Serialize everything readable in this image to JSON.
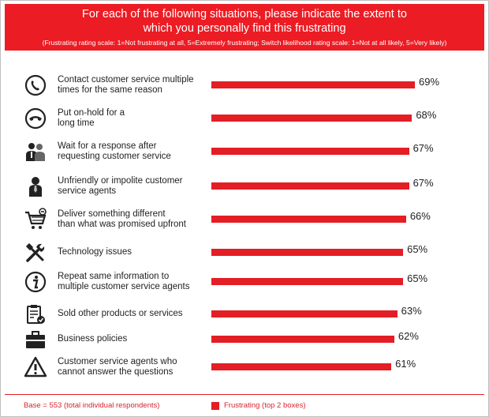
{
  "header": {
    "title_line1": "For each of the following situations, please indicate the extent to",
    "title_line2": "which you personally find this frustrating",
    "subtitle": "(Frustrating rating scale: 1=Not frustrating at all, 5=Extremely frustrating; Switch likelihood rating scale: 1=Not at all likely, 5=Very likely)"
  },
  "chart_data": {
    "type": "bar",
    "orientation": "horizontal",
    "title": "For each of the following situations, please indicate the extent to which you personally find this frustrating",
    "value_unit": "%",
    "xlim": [
      0,
      100
    ],
    "series": [
      {
        "name": "Frustrating (top 2 boxes)",
        "color": "#e31e24",
        "values": [
          69,
          68,
          67,
          67,
          66,
          65,
          65,
          63,
          62,
          61
        ]
      }
    ],
    "categories": [
      {
        "line1": "Contact customer service multiple",
        "line2": "times for the same reason",
        "icon": "phone-icon",
        "value": 69,
        "label": "69%"
      },
      {
        "line1": "Put on-hold for a",
        "line2": "long time",
        "icon": "handset-icon",
        "value": 68,
        "label": "68%"
      },
      {
        "line1": "Wait for a response after",
        "line2": "requesting customer service",
        "icon": "people-icon",
        "value": 67,
        "label": "67%"
      },
      {
        "line1": "Unfriendly or impolite customer",
        "line2": "service agents",
        "icon": "person-icon",
        "value": 67,
        "label": "67%"
      },
      {
        "line1": "Deliver something different",
        "line2": "than what was promised upfront",
        "icon": "cart-icon",
        "value": 66,
        "label": "66%"
      },
      {
        "line1": "Technology issues",
        "line2": "",
        "icon": "tools-icon",
        "value": 65,
        "label": "65%"
      },
      {
        "line1": "Repeat same information to",
        "line2": "multiple customer service agents",
        "icon": "info-icon",
        "value": 65,
        "label": "65%"
      },
      {
        "line1": "Sold other products or services",
        "line2": "",
        "icon": "clipboard-icon",
        "value": 63,
        "label": "63%"
      },
      {
        "line1": "Business policies",
        "line2": "",
        "icon": "briefcase-icon",
        "value": 62,
        "label": "62%"
      },
      {
        "line1": "Customer service agents who",
        "line2": "cannot answer the questions",
        "icon": "warning-icon",
        "value": 61,
        "label": "61%"
      }
    ]
  },
  "footer": {
    "base": "Base = 553 (total individual respondents)",
    "legend": "Frustrating (top 2 boxes)"
  }
}
